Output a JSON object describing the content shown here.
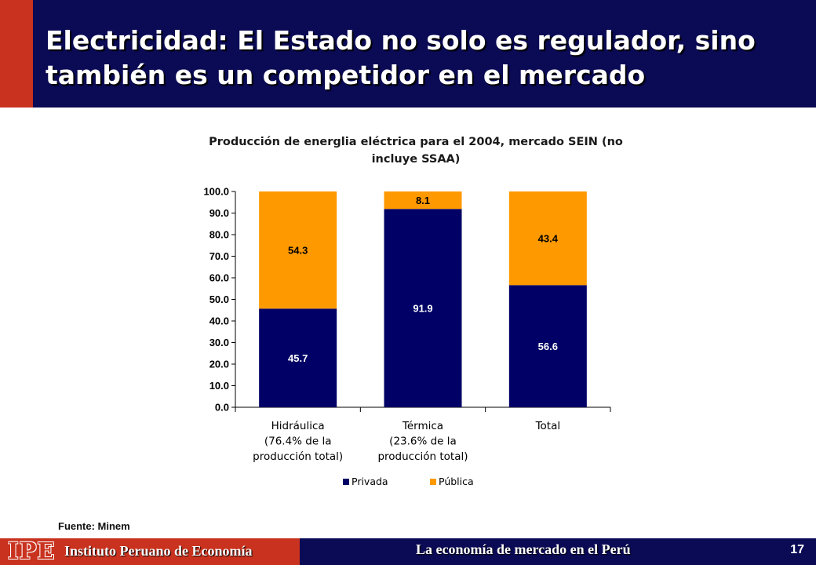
{
  "slide": {
    "title": "Electricidad: El Estado no solo es regulador, sino también es un competidor en el mercado",
    "source": "Fuente: Minem",
    "page_number": "17"
  },
  "footer": {
    "logo_text": "IPE",
    "institute": "Instituto Peruano de Economía",
    "tagline": "La economía de mercado en el Perú"
  },
  "colors": {
    "header_bg": "#0a0a55",
    "accent": "#c8321e",
    "privada": "#000066",
    "publica": "#ff9900"
  },
  "chart_data": {
    "type": "bar",
    "stacked": true,
    "title": "Producción de energlia eléctrica para el 2004, mercado SEIN (no incluye SSAA)",
    "categories": [
      [
        "Hidráulica",
        "(76.4% de la",
        "producción total)"
      ],
      [
        "Térmica",
        "(23.6% de la",
        "producción total)"
      ],
      [
        "Total"
      ]
    ],
    "series": [
      {
        "name": "Privada",
        "values": [
          45.7,
          91.9,
          56.6
        ],
        "labels": [
          "45.7",
          "91.9",
          "56.6"
        ]
      },
      {
        "name": "Pública",
        "values": [
          54.3,
          8.1,
          43.4
        ],
        "labels": [
          "54.3",
          "8.1",
          "43.4"
        ]
      }
    ],
    "ylim": [
      0,
      100
    ],
    "yticks": [
      "0.0",
      "10.0",
      "20.0",
      "30.0",
      "40.0",
      "50.0",
      "60.0",
      "70.0",
      "80.0",
      "90.0",
      "100.0"
    ],
    "grid": false,
    "legend": "bottom"
  }
}
